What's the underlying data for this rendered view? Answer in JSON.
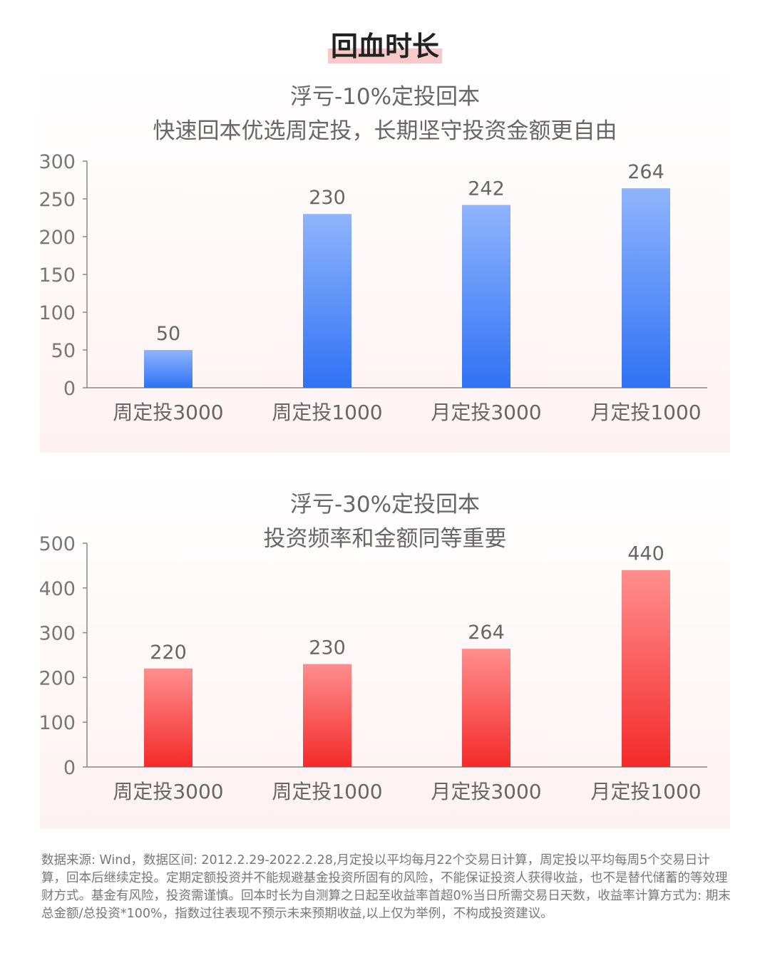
{
  "page": {
    "title": "回血时长",
    "footnote": "数据来源: Wind，数据区间: 2012.2.29-2022.2.28,月定投以平均每月22个交易日计算，周定投以平均每周5个交易日计算，回本后继续定投。定期定额投资并不能规避基金投资所固有的风险，不能保证投资人获得收益，也不是替代储蓄的等效理财方式。基金有风险，投资需谨慎。回本时长为自测算之日起至收益率首超0%当日所需交易日天数，收益率计算方式为: 期末总金额/总投资*100%，指数过往表现不预示未来预期收益,以上仅为举例，不构成投资建议。"
  },
  "chart_data": [
    {
      "type": "bar",
      "title": "浮亏-10%定投回本",
      "subtitle": "快速回本优选周定投，长期坚守投资金额更自由",
      "categories": [
        "周定投3000",
        "周定投1000",
        "月定投3000",
        "月定投1000"
      ],
      "values": [
        50,
        230,
        242,
        264
      ],
      "ylim": [
        0,
        300
      ],
      "yticks": [
        0,
        50,
        100,
        150,
        200,
        250,
        300
      ],
      "bar_color_top": "#8fb4fb",
      "bar_color_bottom": "#2f72f5",
      "grid": false
    },
    {
      "type": "bar",
      "title": "浮亏-30%定投回本",
      "subtitle": "投资频率和金额同等重要",
      "categories": [
        "周定投3000",
        "周定投1000",
        "月定投3000",
        "月定投1000"
      ],
      "values": [
        220,
        230,
        264,
        440
      ],
      "ylim": [
        0,
        500
      ],
      "yticks": [
        0,
        100,
        200,
        300,
        400,
        500
      ],
      "bar_color_top": "#ff8e8e",
      "bar_color_bottom": "#f42a2a",
      "grid": false
    }
  ]
}
